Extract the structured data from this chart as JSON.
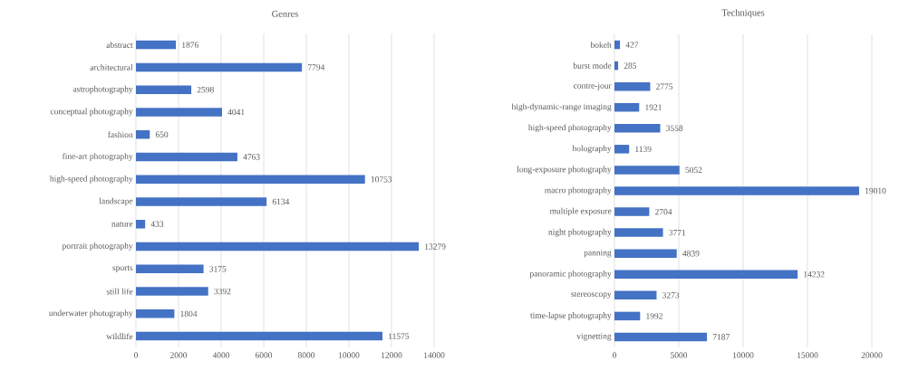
{
  "chart_data": [
    {
      "type": "bar",
      "orientation": "horizontal",
      "title": "Genres",
      "categories": [
        "abstract",
        "architectural",
        "astrophotography",
        "conceptual photography",
        "fashion",
        "fine-art photography",
        "high-speed photography",
        "landscape",
        "nature",
        "portrait photography",
        "sports",
        "still life",
        "underwater photography",
        "wildlife"
      ],
      "values": [
        1876,
        7794,
        2598,
        4041,
        650,
        4763,
        10753,
        6134,
        433,
        13279,
        3175,
        3392,
        1804,
        11575
      ],
      "color": "#4472c4",
      "xlim": [
        0,
        14000
      ],
      "xticks": [
        0,
        2000,
        4000,
        6000,
        8000,
        10000,
        12000,
        14000
      ],
      "grid": "x",
      "data_labels": true
    },
    {
      "type": "bar",
      "orientation": "horizontal",
      "title": "Techniques",
      "categories": [
        "bokeh",
        "burst mode",
        "contre-jour",
        "high-dynamic-range imaging",
        "high-speed photography",
        "holography",
        "long-exposure photography",
        "macro photography",
        "multiple exposure",
        "night photography",
        "panning",
        "panoramic photography",
        "stereoscopy",
        "time-lapse photography",
        "vignetting"
      ],
      "values": [
        427,
        285,
        2775,
        1921,
        3558,
        1139,
        5052,
        19010,
        2704,
        3771,
        4839,
        14232,
        3273,
        1992,
        7187
      ],
      "color": "#4472c4",
      "xlim": [
        0,
        20000
      ],
      "xticks": [
        0,
        5000,
        10000,
        15000,
        20000
      ],
      "grid": "x",
      "data_labels": true
    }
  ]
}
